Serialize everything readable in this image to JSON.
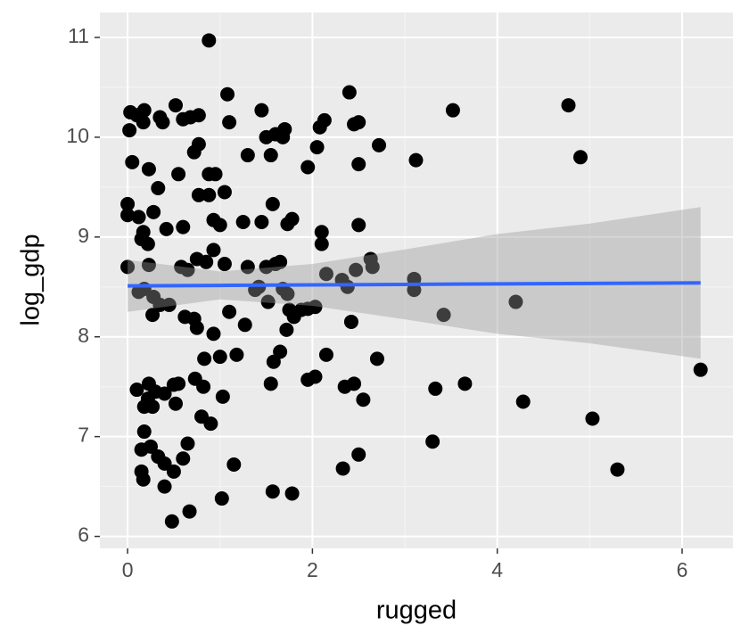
{
  "chart_data": {
    "type": "scatter",
    "xlabel": "rugged",
    "ylabel": "log_gdp",
    "xlim": [
      -0.3,
      6.55
    ],
    "ylim": [
      5.88,
      11.25
    ],
    "xticks": [
      0,
      2,
      4,
      6
    ],
    "yticks": [
      6,
      7,
      8,
      9,
      10,
      11
    ],
    "xminor": [
      1,
      3,
      5
    ],
    "yminor": [
      6.5,
      7.5,
      8.5,
      9.5,
      10.5
    ],
    "grid": true,
    "color": "#000000",
    "x": [
      0.88,
      0.03,
      0.17,
      0.02,
      0.1,
      0.18,
      0.35,
      0.38,
      0.52,
      0.6,
      0.68,
      0.77,
      0.77,
      0.72,
      0.05,
      0.23,
      0.55,
      0.88,
      0.95,
      0.33,
      0.77,
      0.88,
      1.05,
      0.0,
      0.0,
      0.12,
      0.28,
      0.17,
      0.22,
      0.15,
      0.42,
      0.6,
      0.93,
      1.0,
      1.25,
      0.0,
      0.23,
      0.58,
      0.65,
      0.75,
      0.85,
      0.93,
      1.05,
      0.12,
      0.18,
      0.28,
      0.35,
      0.45,
      0.27,
      0.62,
      0.72,
      0.75,
      0.93,
      1.1,
      1.27,
      0.83,
      1.0,
      1.18,
      0.1,
      0.23,
      0.22,
      0.3,
      0.4,
      0.5,
      0.55,
      0.18,
      0.27,
      0.52,
      0.73,
      0.82,
      1.03,
      0.8,
      0.9,
      0.18,
      0.25,
      0.15,
      0.33,
      0.4,
      0.5,
      0.6,
      0.65,
      0.15,
      0.17,
      0.4,
      0.67,
      0.48,
      1.02,
      1.15,
      1.08,
      1.1,
      1.3,
      1.45,
      1.5,
      1.55,
      1.6,
      1.68,
      1.7,
      1.57,
      1.45,
      1.73,
      1.78,
      1.95,
      2.05,
      2.08,
      2.13,
      2.4,
      2.45,
      2.5,
      2.72,
      2.5,
      1.3,
      1.38,
      1.42,
      1.5,
      1.6,
      1.65,
      1.68,
      1.73,
      1.52,
      1.75,
      1.8,
      1.88,
      1.95,
      2.03,
      1.72,
      1.65,
      1.58,
      1.55,
      1.95,
      2.03,
      2.15,
      2.1,
      2.1,
      2.15,
      2.32,
      2.38,
      2.47,
      2.5,
      2.63,
      2.65,
      2.42,
      2.35,
      2.45,
      2.55,
      2.7,
      2.33,
      2.5,
      1.57,
      1.78,
      3.1,
      3.1,
      3.12,
      3.52,
      3.42,
      3.33,
      3.65,
      3.3,
      4.2,
      4.28,
      4.77,
      4.9,
      5.03,
      5.3,
      6.2
    ],
    "y": [
      10.97,
      10.25,
      10.15,
      10.07,
      10.22,
      10.27,
      10.2,
      10.15,
      10.32,
      10.18,
      10.2,
      10.22,
      9.93,
      9.85,
      9.75,
      9.68,
      9.63,
      9.63,
      9.63,
      9.49,
      9.42,
      9.42,
      9.45,
      9.33,
      9.22,
      9.2,
      9.25,
      9.05,
      8.93,
      8.98,
      9.08,
      9.1,
      9.17,
      9.12,
      9.15,
      8.7,
      8.72,
      8.7,
      8.67,
      8.78,
      8.75,
      8.87,
      8.73,
      8.45,
      8.48,
      8.4,
      8.32,
      8.32,
      8.22,
      8.2,
      8.18,
      8.09,
      8.03,
      8.25,
      8.12,
      7.78,
      7.8,
      7.82,
      7.47,
      7.53,
      7.38,
      7.45,
      7.43,
      7.52,
      7.53,
      7.3,
      7.3,
      7.33,
      7.58,
      7.5,
      7.4,
      7.2,
      7.13,
      7.05,
      6.9,
      6.87,
      6.8,
      6.73,
      6.65,
      6.78,
      6.93,
      6.65,
      6.57,
      6.5,
      6.25,
      6.15,
      6.38,
      6.72,
      10.43,
      10.15,
      9.82,
      10.27,
      10.0,
      9.82,
      10.03,
      10.0,
      10.08,
      9.33,
      9.15,
      9.13,
      9.18,
      9.7,
      9.9,
      10.1,
      10.17,
      10.45,
      10.13,
      10.15,
      9.92,
      9.73,
      8.7,
      8.47,
      8.5,
      8.7,
      8.73,
      8.75,
      8.48,
      8.43,
      8.35,
      8.27,
      8.2,
      8.27,
      8.28,
      8.3,
      8.07,
      7.85,
      7.75,
      7.53,
      7.57,
      7.6,
      7.82,
      9.05,
      8.93,
      8.63,
      8.57,
      8.5,
      8.67,
      9.12,
      8.78,
      8.7,
      8.15,
      7.5,
      7.53,
      7.37,
      7.78,
      6.68,
      6.82,
      6.45,
      6.43,
      8.58,
      8.47,
      9.77,
      10.27,
      8.22,
      7.48,
      7.53,
      6.95,
      8.35,
      7.35,
      10.32,
      9.8,
      7.18,
      6.67,
      7.67
    ],
    "smooth": {
      "color": "#3366ff",
      "fill": "#999999",
      "x": [
        0,
        1,
        2,
        3,
        4,
        5,
        6.2
      ],
      "y": [
        8.51,
        8.515,
        8.52,
        8.525,
        8.53,
        8.535,
        8.54
      ],
      "lower": [
        8.25,
        8.375,
        8.31,
        8.175,
        8.03,
        7.935,
        7.78
      ],
      "upper": [
        8.77,
        8.655,
        8.73,
        8.875,
        9.03,
        9.135,
        9.3
      ]
    }
  }
}
